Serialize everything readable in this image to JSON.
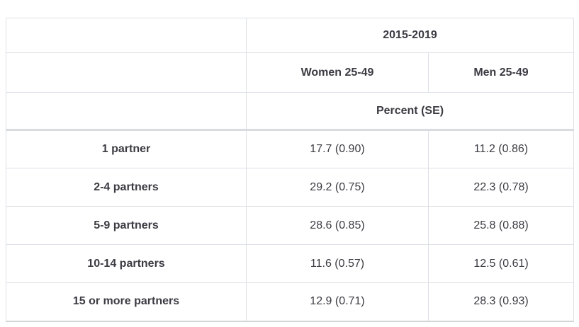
{
  "table": {
    "header": {
      "period": "2015-2019",
      "col_women": "Women 25-49",
      "col_men": "Men 25-49",
      "measure": "Percent (SE)"
    },
    "rows": [
      {
        "label": "1 partner",
        "women": "17.7 (0.90)",
        "men": "11.2 (0.86)"
      },
      {
        "label": "2-4 partners",
        "women": "29.2 (0.75)",
        "men": "22.3 (0.78)"
      },
      {
        "label": "5-9 partners",
        "women": "28.6 (0.85)",
        "men": "25.8 (0.88)"
      },
      {
        "label": "10-14 partners",
        "women": "11.6 (0.57)",
        "men": "12.5 (0.61)"
      },
      {
        "label": "15 or more partners",
        "women": "12.9 (0.71)",
        "men": "28.3 (0.93)"
      }
    ]
  },
  "chart_data": {
    "type": "table",
    "title": "2015-2019",
    "measure": "Percent (SE)",
    "columns": [
      "",
      "Women 25-49",
      "Men 25-49"
    ],
    "categories": [
      "1 partner",
      "2-4 partners",
      "5-9 partners",
      "10-14 partners",
      "15 or more partners"
    ],
    "series": [
      {
        "name": "Women 25-49",
        "values": [
          17.7,
          29.2,
          28.6,
          11.6,
          12.9
        ],
        "se": [
          0.9,
          0.75,
          0.85,
          0.57,
          0.71
        ]
      },
      {
        "name": "Men 25-49",
        "values": [
          11.2,
          22.3,
          25.8,
          12.5,
          28.3
        ],
        "se": [
          0.86,
          0.78,
          0.88,
          0.61,
          0.93
        ]
      }
    ]
  },
  "colors": {
    "border_light": "#dde0e5",
    "border_header_separator": "#d8dce1",
    "border_table_bottom": "#d6d6d8",
    "text_header": "#2b2b34",
    "text_value": "#3b3b43",
    "background": "#ffffff"
  }
}
